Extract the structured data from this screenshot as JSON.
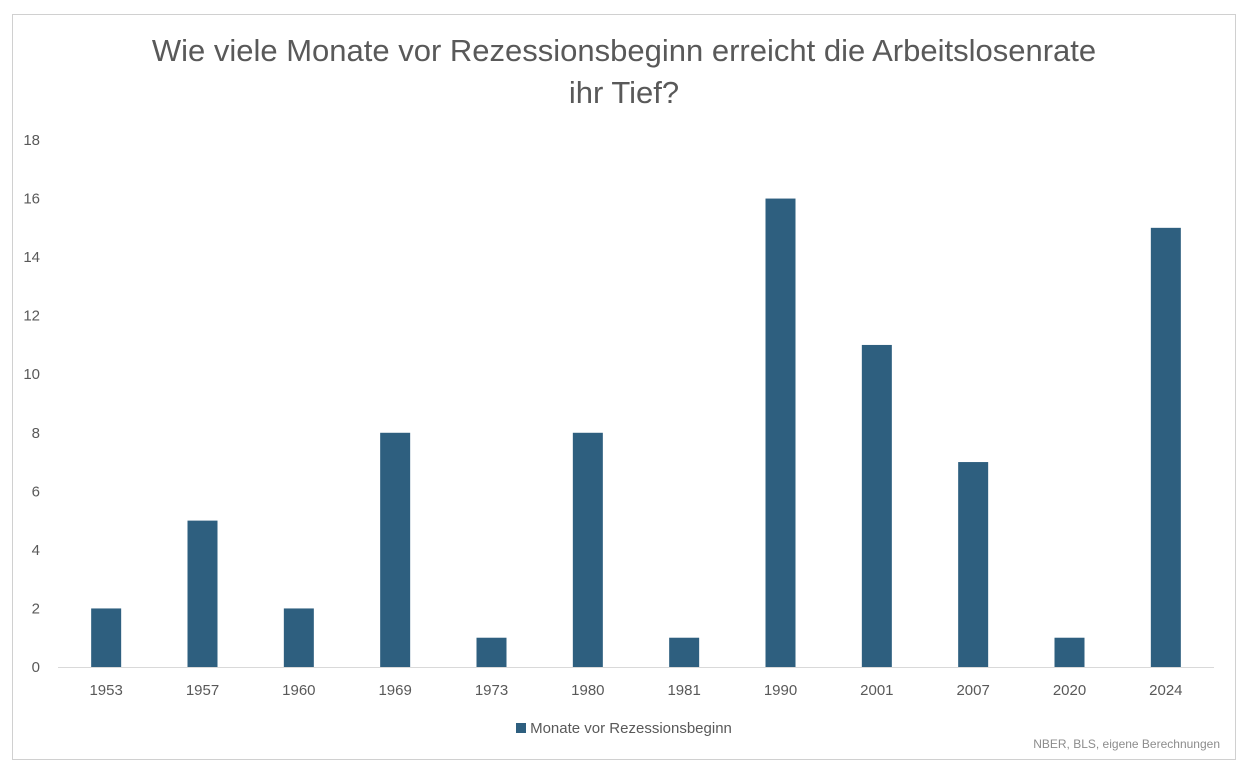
{
  "chart_data": {
    "type": "bar",
    "title_lines": [
      "Wie viele Monate vor Rezessionsbeginn erreicht die Arbeitslosenrate",
      "ihr Tief?"
    ],
    "categories": [
      "1953",
      "1957",
      "1960",
      "1969",
      "1973",
      "1980",
      "1981",
      "1990",
      "2001",
      "2007",
      "2020",
      "2024"
    ],
    "series": [
      {
        "name": "Monate vor Rezessionsbeginn",
        "values": [
          2,
          5,
          2,
          8,
          1,
          8,
          1,
          16,
          11,
          7,
          1,
          15
        ],
        "color": "#2e5f7f"
      }
    ],
    "ylim": [
      0,
      18
    ],
    "yticks": [
      0,
      2,
      4,
      6,
      8,
      10,
      12,
      14,
      16,
      18
    ],
    "grid": false,
    "legend_position": "bottom",
    "source": "NBER, BLS, eigene Berechnungen"
  }
}
